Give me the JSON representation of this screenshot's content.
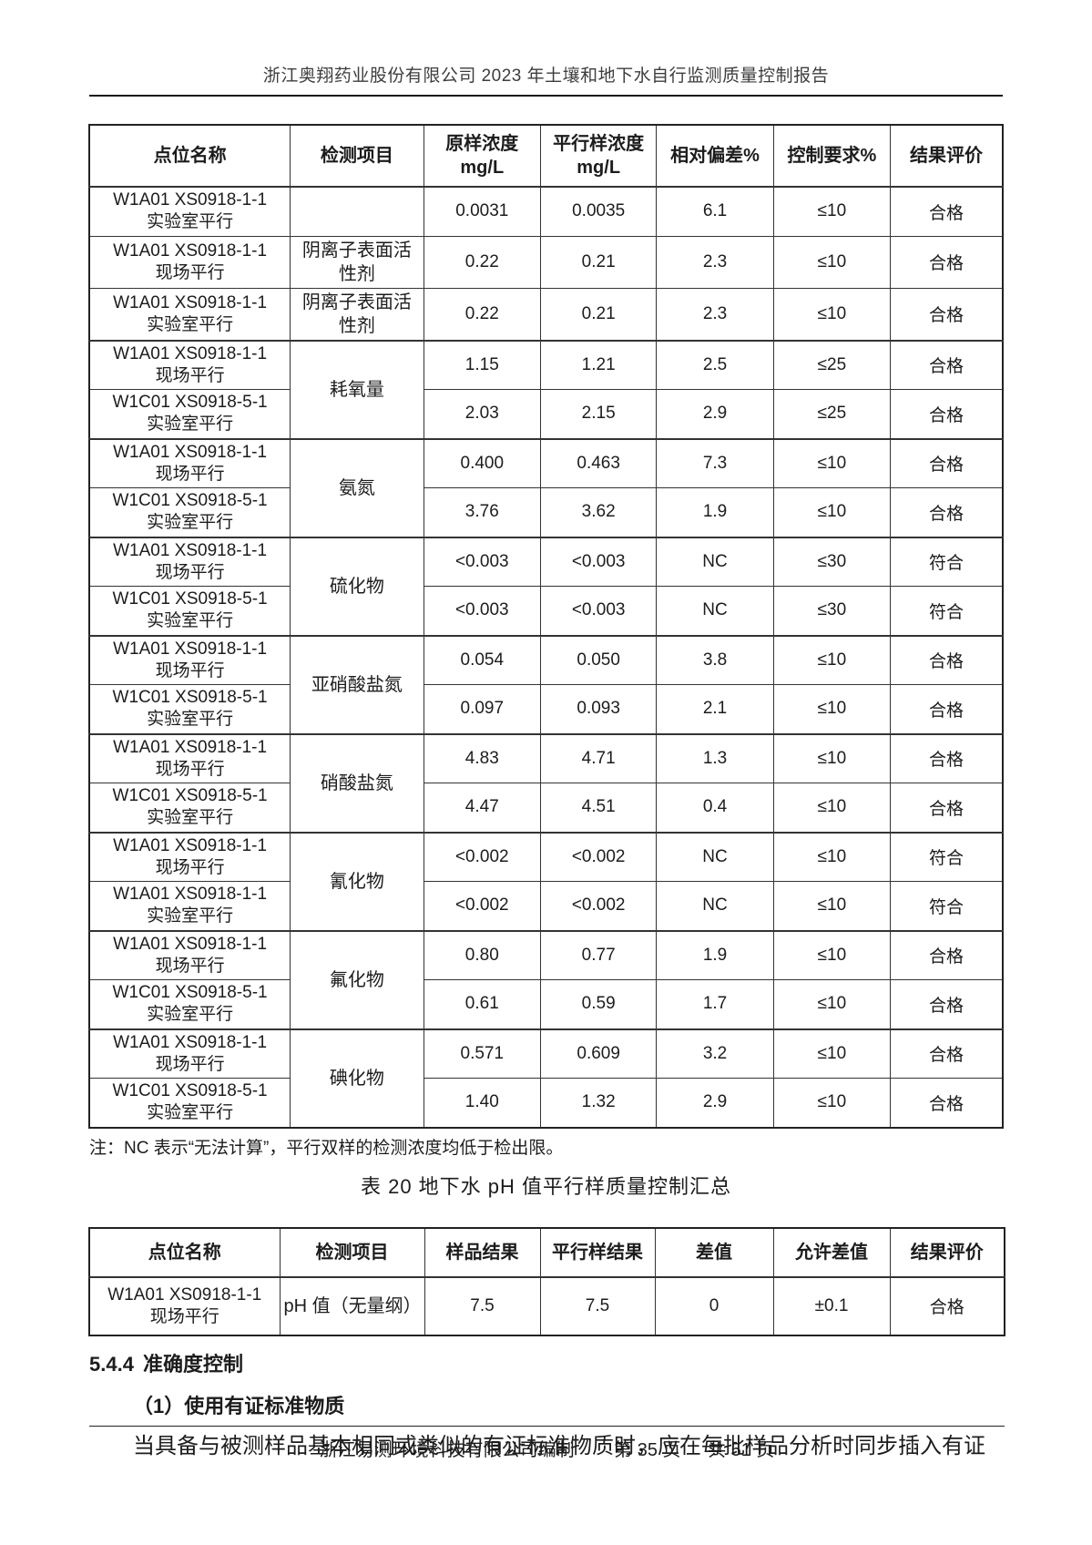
{
  "header": {
    "title": "浙江奥翔药业股份有限公司 2023 年土壤和地下水自行监测质量控制报告"
  },
  "qc_table": {
    "headers": [
      "点位名称",
      "检测项目",
      "原样浓度\nmg/L",
      "平行样浓度\nmg/L",
      "相对偏差%",
      "控制要求%",
      "结果评价"
    ],
    "rows": [
      {
        "site": "W1A01 XS0918-1-1\n实验室平行",
        "item": "",
        "span": 1,
        "c": [
          "0.0031",
          "0.0035",
          "6.1",
          "≤10",
          "合格"
        ]
      },
      {
        "site": "W1A01 XS0918-1-1\n现场平行",
        "item": "阴离子表面活性剂",
        "span": 1,
        "c": [
          "0.22",
          "0.21",
          "2.3",
          "≤10",
          "合格"
        ]
      },
      {
        "site": "W1A01 XS0918-1-1\n实验室平行",
        "item": "阴离子表面活性剂",
        "span": 1,
        "c": [
          "0.22",
          "0.21",
          "2.3",
          "≤10",
          "合格"
        ]
      },
      {
        "site": "W1A01 XS0918-1-1\n现场平行",
        "item": "耗氧量",
        "span": 2,
        "c": [
          "1.15",
          "1.21",
          "2.5",
          "≤25",
          "合格"
        ]
      },
      {
        "site": "W1C01 XS0918-5-1\n实验室平行",
        "c": [
          "2.03",
          "2.15",
          "2.9",
          "≤25",
          "合格"
        ]
      },
      {
        "site": "W1A01 XS0918-1-1\n现场平行",
        "item": "氨氮",
        "span": 2,
        "c": [
          "0.400",
          "0.463",
          "7.3",
          "≤10",
          "合格"
        ]
      },
      {
        "site": "W1C01 XS0918-5-1\n实验室平行",
        "c": [
          "3.76",
          "3.62",
          "1.9",
          "≤10",
          "合格"
        ]
      },
      {
        "site": "W1A01 XS0918-1-1\n现场平行",
        "item": "硫化物",
        "span": 2,
        "c": [
          "<0.003",
          "<0.003",
          "NC",
          "≤30",
          "符合"
        ]
      },
      {
        "site": "W1C01 XS0918-5-1\n实验室平行",
        "c": [
          "<0.003",
          "<0.003",
          "NC",
          "≤30",
          "符合"
        ]
      },
      {
        "site": "W1A01 XS0918-1-1\n现场平行",
        "item": "亚硝酸盐氮",
        "span": 2,
        "c": [
          "0.054",
          "0.050",
          "3.8",
          "≤10",
          "合格"
        ]
      },
      {
        "site": "W1C01 XS0918-5-1\n实验室平行",
        "c": [
          "0.097",
          "0.093",
          "2.1",
          "≤10",
          "合格"
        ]
      },
      {
        "site": "W1A01 XS0918-1-1\n现场平行",
        "item": "硝酸盐氮",
        "span": 2,
        "c": [
          "4.83",
          "4.71",
          "1.3",
          "≤10",
          "合格"
        ]
      },
      {
        "site": "W1C01 XS0918-5-1\n实验室平行",
        "c": [
          "4.47",
          "4.51",
          "0.4",
          "≤10",
          "合格"
        ]
      },
      {
        "site": "W1A01 XS0918-1-1\n现场平行",
        "item": "氰化物",
        "span": 2,
        "c": [
          "<0.002",
          "<0.002",
          "NC",
          "≤10",
          "符合"
        ]
      },
      {
        "site": "W1A01 XS0918-1-1\n实验室平行",
        "c": [
          "<0.002",
          "<0.002",
          "NC",
          "≤10",
          "符合"
        ]
      },
      {
        "site": "W1A01 XS0918-1-1\n现场平行",
        "item": "氟化物",
        "span": 2,
        "c": [
          "0.80",
          "0.77",
          "1.9",
          "≤10",
          "合格"
        ]
      },
      {
        "site": "W1C01 XS0918-5-1\n实验室平行",
        "c": [
          "0.61",
          "0.59",
          "1.7",
          "≤10",
          "合格"
        ]
      },
      {
        "site": "W1A01 XS0918-1-1\n现场平行",
        "item": "碘化物",
        "span": 2,
        "c": [
          "0.571",
          "0.609",
          "3.2",
          "≤10",
          "合格"
        ]
      },
      {
        "site": "W1C01 XS0918-5-1\n实验室平行",
        "c": [
          "1.40",
          "1.32",
          "2.9",
          "≤10",
          "合格"
        ]
      }
    ]
  },
  "note": "注：NC 表示“无法计算”，平行双样的检测浓度均低于检出限。",
  "table20": {
    "title": "表 20 地下水 pH 值平行样质量控制汇总",
    "headers": [
      "点位名称",
      "检测项目",
      "样品结果",
      "平行样结果",
      "差值",
      "允许差值",
      "结果评价"
    ],
    "rows": [
      {
        "site": "W1A01 XS0918-1-1\n现场平行",
        "item": "pH 值（无量纲）",
        "span": 1,
        "c": [
          "7.5",
          "7.5",
          "0",
          "±0.1",
          "合格"
        ]
      }
    ]
  },
  "section": {
    "number": "5.4.4",
    "label": "准确度控制"
  },
  "subsection": "（1）使用有证标准物质",
  "paragraph": "当具备与被测样品基本相同或类似的有证标准物质时，应在每批样品分析时同步插入有证",
  "footer": {
    "publisher": "浙江易测环境科技有限公司编制",
    "page_current": "第 35 页",
    "page_total": "共 51 页"
  }
}
